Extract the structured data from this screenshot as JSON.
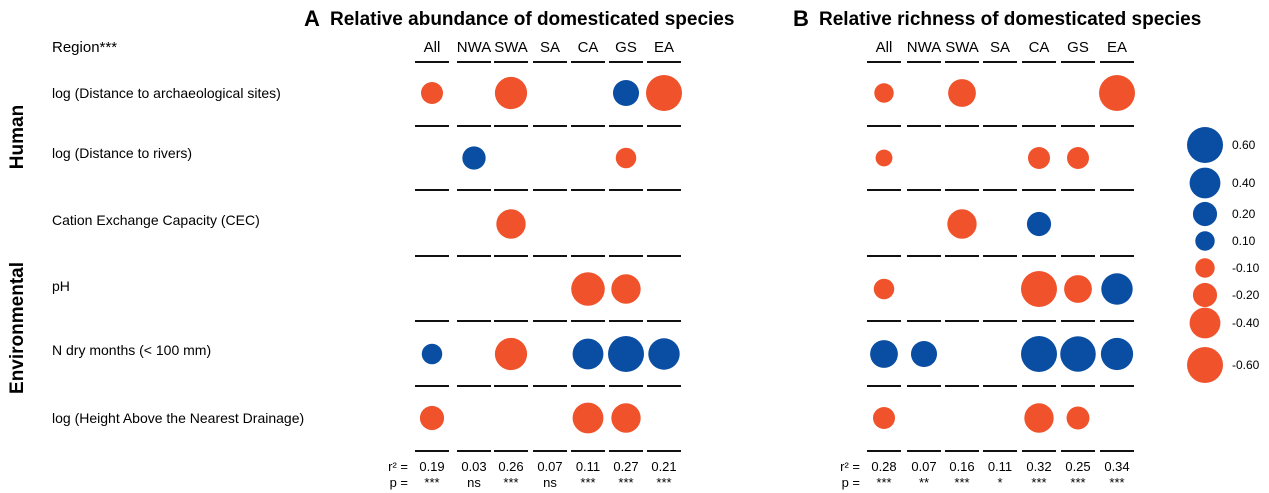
{
  "chart_data": [
    {
      "type": "bubble-matrix",
      "panel": "A",
      "title": "Relative abundance of domesticated species",
      "region_header": "Region***",
      "regions": [
        "All",
        "NWA",
        "SWA",
        "SA",
        "CA",
        "GS",
        "EA"
      ],
      "groups": [
        "Human",
        "Environmental"
      ],
      "predictors": [
        "log (Distance to archaeological sites)",
        "log (Distance to rivers)",
        "Cation Exchange Capacity (CEC)",
        "pH",
        "N dry months (< 100 mm)",
        "log (Height Above the Nearest Drainage)"
      ],
      "values": [
        [
          -0.15,
          null,
          -0.45,
          null,
          null,
          0.25,
          -0.6
        ],
        [
          null,
          0.18,
          null,
          null,
          null,
          -0.12,
          null
        ],
        [
          null,
          null,
          -0.35,
          null,
          null,
          null,
          null
        ],
        [
          null,
          null,
          null,
          null,
          -0.5,
          -0.35,
          null
        ],
        [
          0.12,
          null,
          -0.45,
          null,
          0.4,
          0.6,
          0.42
        ],
        [
          -0.2,
          null,
          null,
          null,
          -0.4,
          -0.35,
          null
        ]
      ],
      "r2_label": "r² =",
      "p_label": "p =",
      "r2": [
        "0.19",
        "0.03",
        "0.26",
        "0.07",
        "0.11",
        "0.27",
        "0.21"
      ],
      "p": [
        "***",
        "ns",
        "***",
        "ns",
        "***",
        "***",
        "***"
      ]
    },
    {
      "type": "bubble-matrix",
      "panel": "B",
      "title": "Relative richness of domesticated species",
      "regions": [
        "All",
        "NWA",
        "SWA",
        "SA",
        "CA",
        "GS",
        "EA"
      ],
      "values": [
        [
          -0.1,
          null,
          -0.3,
          null,
          null,
          null,
          -0.6
        ],
        [
          -0.06,
          null,
          null,
          null,
          -0.15,
          -0.15,
          null
        ],
        [
          null,
          null,
          -0.35,
          null,
          0.2,
          null,
          null
        ],
        [
          -0.12,
          null,
          null,
          null,
          -0.6,
          -0.3,
          0.42
        ],
        [
          0.3,
          0.25,
          null,
          null,
          0.6,
          0.58,
          0.45
        ],
        [
          -0.15,
          null,
          null,
          null,
          -0.35,
          -0.17,
          null
        ]
      ],
      "r2_label": "r² =",
      "p_label": "p =",
      "r2": [
        "0.28",
        "0.07",
        "0.16",
        "0.11",
        "0.32",
        "0.25",
        "0.34"
      ],
      "p": [
        "***",
        "**",
        "***",
        "*",
        "***",
        "***",
        "***"
      ]
    }
  ],
  "legend": {
    "values": [
      0.6,
      0.4,
      0.2,
      0.1,
      -0.1,
      -0.2,
      -0.4,
      -0.6
    ],
    "labels": [
      "0.60",
      "0.40",
      "0.20",
      "0.10",
      "-0.10",
      "-0.20",
      "-0.40",
      "-0.60"
    ]
  },
  "colors": {
    "positive": "#0a4ea3",
    "negative": "#f0532b",
    "line": "#111111"
  }
}
